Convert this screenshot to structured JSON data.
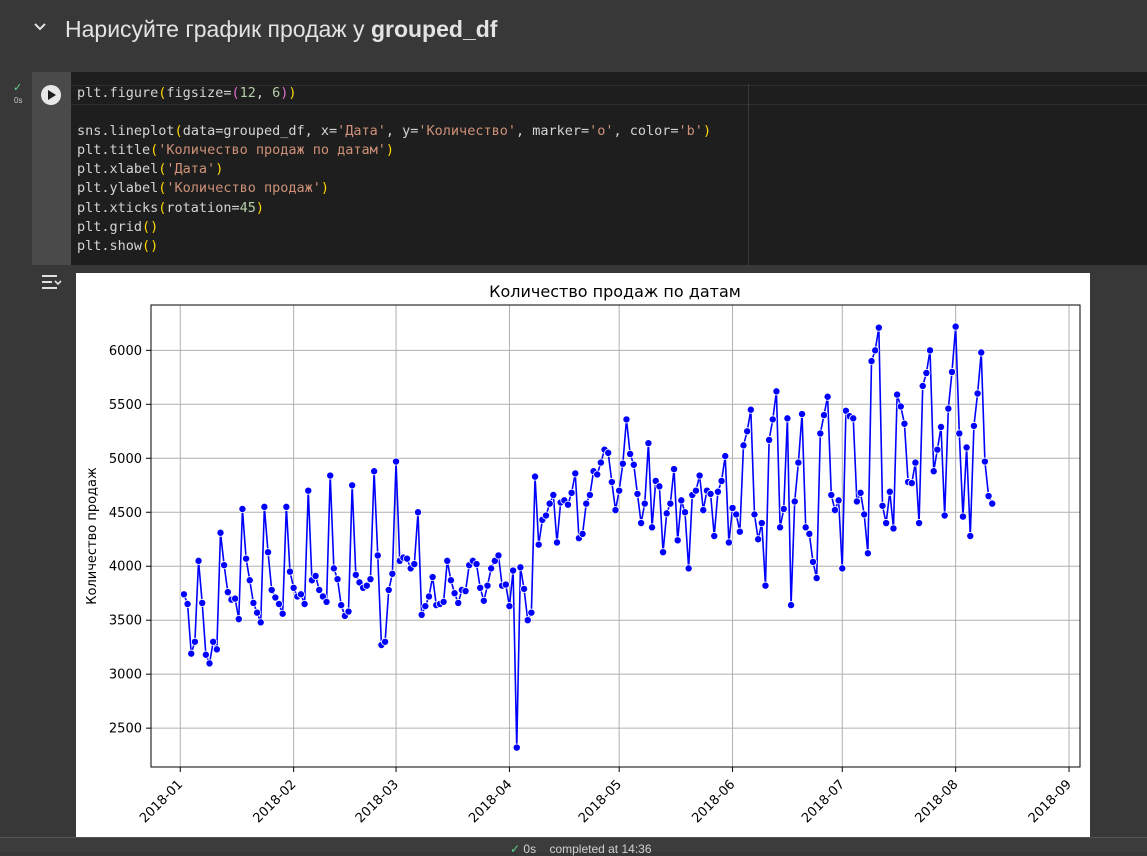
{
  "section": {
    "title_prefix": "Нарисуйте график продаж у ",
    "title_bold": "grouped_df"
  },
  "cell": {
    "status_time": "0s"
  },
  "code_lines": [
    [
      [
        "plt.figure",
        ""
      ],
      [
        "(",
        "par1"
      ],
      [
        "figsize=",
        ""
      ],
      [
        "(",
        "par2"
      ],
      [
        "12",
        "num"
      ],
      [
        ", ",
        ""
      ],
      [
        "6",
        "num"
      ],
      [
        ")",
        "par2"
      ],
      [
        ")",
        "par1"
      ]
    ],
    [],
    [
      [
        "sns.lineplot",
        ""
      ],
      [
        "(",
        "par1"
      ],
      [
        "data=grouped_df, x=",
        ""
      ],
      [
        "'Дата'",
        "str"
      ],
      [
        ", y=",
        ""
      ],
      [
        "'Количество'",
        "str"
      ],
      [
        ", marker=",
        ""
      ],
      [
        "'o'",
        "str"
      ],
      [
        ", color=",
        ""
      ],
      [
        "'b'",
        "str"
      ],
      [
        ")",
        "par1"
      ]
    ],
    [
      [
        "plt.title",
        ""
      ],
      [
        "(",
        "par1"
      ],
      [
        "'Количество продаж по датам'",
        "str"
      ],
      [
        ")",
        "par1"
      ]
    ],
    [
      [
        "plt.xlabel",
        ""
      ],
      [
        "(",
        "par1"
      ],
      [
        "'Дата'",
        "str"
      ],
      [
        ")",
        "par1"
      ]
    ],
    [
      [
        "plt.ylabel",
        ""
      ],
      [
        "(",
        "par1"
      ],
      [
        "'Количество продаж'",
        "str"
      ],
      [
        ")",
        "par1"
      ]
    ],
    [
      [
        "plt.xticks",
        ""
      ],
      [
        "(",
        "par1"
      ],
      [
        "rotation=",
        ""
      ],
      [
        "45",
        "num"
      ],
      [
        ")",
        "par1"
      ]
    ],
    [
      [
        "plt.grid",
        ""
      ],
      [
        "()",
        "par1"
      ]
    ],
    [
      [
        "plt.show",
        ""
      ],
      [
        "()",
        "par1"
      ]
    ]
  ],
  "status_bar": {
    "check": "✓",
    "time": "0s",
    "completed": "completed at 14:36"
  },
  "colors": {
    "line": "#0000ff",
    "grid": "#b0b0b0"
  },
  "chart_data": {
    "type": "line",
    "title": "Количество продаж по датам",
    "xlabel": "",
    "ylabel": "Количество продаж",
    "xtick_labels": [
      "2018-01",
      "2018-02",
      "2018-03",
      "2018-04",
      "2018-05",
      "2018-06",
      "2018-07",
      "2018-08",
      "2018-09"
    ],
    "yticks": [
      2500,
      3000,
      3500,
      4000,
      4500,
      5000,
      5500,
      6000
    ],
    "xlim": [
      "2017-12-24",
      "2018-09-04"
    ],
    "ylim": [
      2140,
      6420
    ],
    "grid": true,
    "marker": "o",
    "x_start": "2018-01-02",
    "x_step_days": 1,
    "values": [
      3740,
      3650,
      3190,
      3300,
      4050,
      3660,
      3180,
      3100,
      3300,
      3230,
      4310,
      4010,
      3760,
      3690,
      3700,
      3510,
      4530,
      4070,
      3870,
      3660,
      3570,
      3480,
      4550,
      4130,
      3780,
      3710,
      3650,
      3560,
      4550,
      3950,
      3800,
      3720,
      3740,
      3650,
      4700,
      3870,
      3910,
      3780,
      3720,
      3670,
      4840,
      3980,
      3880,
      3640,
      3540,
      3580,
      4750,
      3920,
      3850,
      3800,
      3820,
      3880,
      4880,
      4100,
      3270,
      3300,
      3780,
      3930,
      4970,
      4050,
      4080,
      4070,
      3980,
      4020,
      4500,
      3550,
      3630,
      3720,
      3900,
      3640,
      3650,
      3670,
      4050,
      3870,
      3750,
      3660,
      3780,
      3770,
      4010,
      4050,
      4020,
      3800,
      3680,
      3820,
      3980,
      4050,
      4100,
      3820,
      3830,
      3630,
      3960,
      2320,
      3990,
      3790,
      3500,
      3570,
      4830,
      4200,
      4430,
      4470,
      4580,
      4660,
      4220,
      4590,
      4610,
      4570,
      4680,
      4860,
      4260,
      4300,
      4580,
      4660,
      4880,
      4850,
      4960,
      5080,
      5050,
      4780,
      4520,
      4700,
      4950,
      5360,
      5040,
      4940,
      4670,
      4400,
      4580,
      5140,
      4360,
      4790,
      4740,
      4130,
      4490,
      4580,
      4900,
      4240,
      4610,
      4500,
      3980,
      4660,
      4700,
      4840,
      4520,
      4700,
      4670,
      4280,
      4690,
      4790,
      5020,
      4220,
      4540,
      4480,
      4320,
      5120,
      5250,
      5450,
      4480,
      4250,
      4400,
      3820,
      5170,
      5360,
      5620,
      4360,
      4530,
      5370,
      3640,
      4600,
      4960,
      5410,
      4360,
      4300,
      4040,
      3890,
      5230,
      5400,
      5570,
      4660,
      4520,
      4610,
      3980,
      5440,
      5390,
      5370,
      4600,
      4680,
      4480,
      4120,
      5900,
      6000,
      6210,
      4560,
      4400,
      4690,
      4350,
      5590,
      5480,
      5320,
      4780,
      4770,
      4960,
      4400,
      5670,
      5790,
      6000,
      4880,
      5080,
      5290,
      4470,
      5460,
      5800,
      6220,
      5230,
      4460,
      5100,
      4280,
      5300,
      5600,
      5980,
      4970,
      4650,
      4580
    ]
  }
}
